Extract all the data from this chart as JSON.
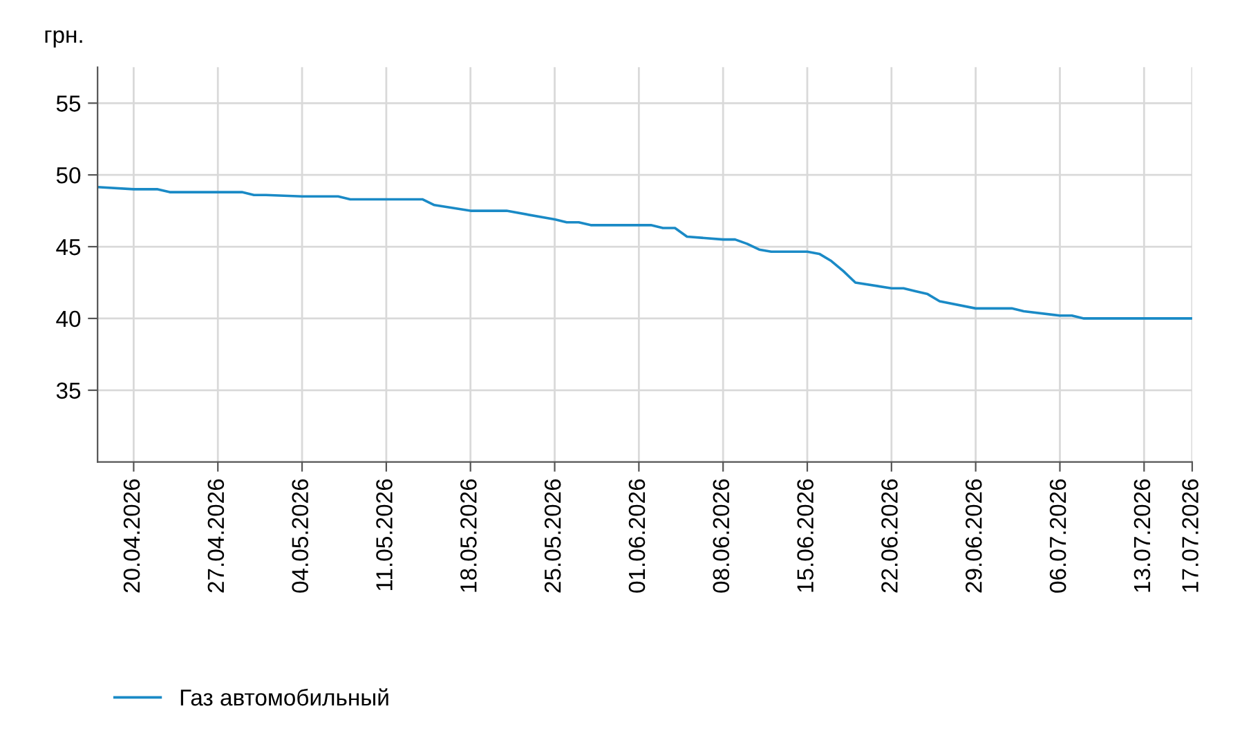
{
  "chart_data": {
    "type": "line",
    "ylabel": "грн.",
    "xlim": [
      "2026-04-17",
      "2026-07-17"
    ],
    "xticks": [
      {
        "value": "2026-04-20",
        "label": "20.04.2026"
      },
      {
        "value": "2026-04-27",
        "label": "27.04.2026"
      },
      {
        "value": "2026-05-04",
        "label": "04.05.2026"
      },
      {
        "value": "2026-05-11",
        "label": "11.05.2026"
      },
      {
        "value": "2026-05-18",
        "label": "18.05.2026"
      },
      {
        "value": "2026-05-25",
        "label": "25.05.2026"
      },
      {
        "value": "2026-06-01",
        "label": "01.06.2026"
      },
      {
        "value": "2026-06-08",
        "label": "08.06.2026"
      },
      {
        "value": "2026-06-15",
        "label": "15.06.2026"
      },
      {
        "value": "2026-06-22",
        "label": "22.06.2026"
      },
      {
        "value": "2026-06-29",
        "label": "29.06.2026"
      },
      {
        "value": "2026-07-06",
        "label": "06.07.2026"
      },
      {
        "value": "2026-07-13",
        "label": "13.07.2026"
      },
      {
        "value": "2026-07-17",
        "label": "17.07.2026"
      }
    ],
    "ylim": [
      30,
      57.5
    ],
    "yticks": [
      35,
      40,
      45,
      50,
      55
    ],
    "grid": true,
    "legend": "bottom left",
    "marker": "none",
    "line_style": "solid",
    "x": [
      "2026-04-17",
      "2026-04-20",
      "2026-04-22",
      "2026-04-23",
      "2026-04-29",
      "2026-04-30",
      "2026-05-01",
      "2026-05-04",
      "2026-05-07",
      "2026-05-08",
      "2026-05-14",
      "2026-05-15",
      "2026-05-18",
      "2026-05-21",
      "2026-05-25",
      "2026-05-26",
      "2026-05-27",
      "2026-05-28",
      "2026-06-02",
      "2026-06-03",
      "2026-06-04",
      "2026-06-05",
      "2026-06-08",
      "2026-06-09",
      "2026-06-10",
      "2026-06-11",
      "2026-06-12",
      "2026-06-15",
      "2026-06-16",
      "2026-06-17",
      "2026-06-18",
      "2026-06-19",
      "2026-06-22",
      "2026-06-23",
      "2026-06-24",
      "2026-06-25",
      "2026-06-26",
      "2026-06-29",
      "2026-07-02",
      "2026-07-03",
      "2026-07-06",
      "2026-07-07",
      "2026-07-08",
      "2026-07-17"
    ],
    "series": [
      {
        "name": "Газ автомобильный",
        "color": "#1a8ac6",
        "values": [
          49.15,
          49.0,
          49.0,
          48.8,
          48.8,
          48.6,
          48.6,
          48.5,
          48.5,
          48.3,
          48.3,
          47.9,
          47.5,
          47.5,
          46.9,
          46.7,
          46.7,
          46.5,
          46.5,
          46.3,
          46.3,
          45.7,
          45.5,
          45.5,
          45.2,
          44.8,
          44.65,
          44.65,
          44.5,
          44.0,
          43.3,
          42.5,
          42.1,
          42.1,
          41.9,
          41.7,
          41.2,
          40.7,
          40.7,
          40.5,
          40.2,
          40.2,
          40.0,
          40.0
        ]
      }
    ]
  }
}
